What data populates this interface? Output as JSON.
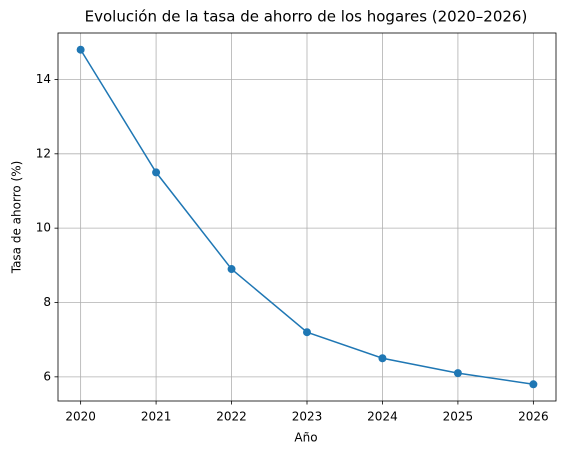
{
  "chart_data": {
    "type": "line",
    "title": "Evolución de la tasa de ahorro de los hogares (2020–2026)",
    "x_label": "Año",
    "y_label": "Tasa de ahorro (%)",
    "x": [
      2020,
      2021,
      2022,
      2023,
      2024,
      2025,
      2026
    ],
    "series": [
      {
        "name": "Tasa de ahorro",
        "color": "#1f77b4",
        "values": [
          14.8,
          11.5,
          8.9,
          7.2,
          6.5,
          6.1,
          5.8
        ]
      }
    ],
    "xlim": [
      2019.7,
      2026.3
    ],
    "xticks": [
      2020,
      2021,
      2022,
      2023,
      2024,
      2025,
      2026
    ],
    "ylim": [
      5.35,
      15.25
    ],
    "yticks": [
      6,
      8,
      10,
      12,
      14
    ],
    "grid": true,
    "markers": true
  }
}
